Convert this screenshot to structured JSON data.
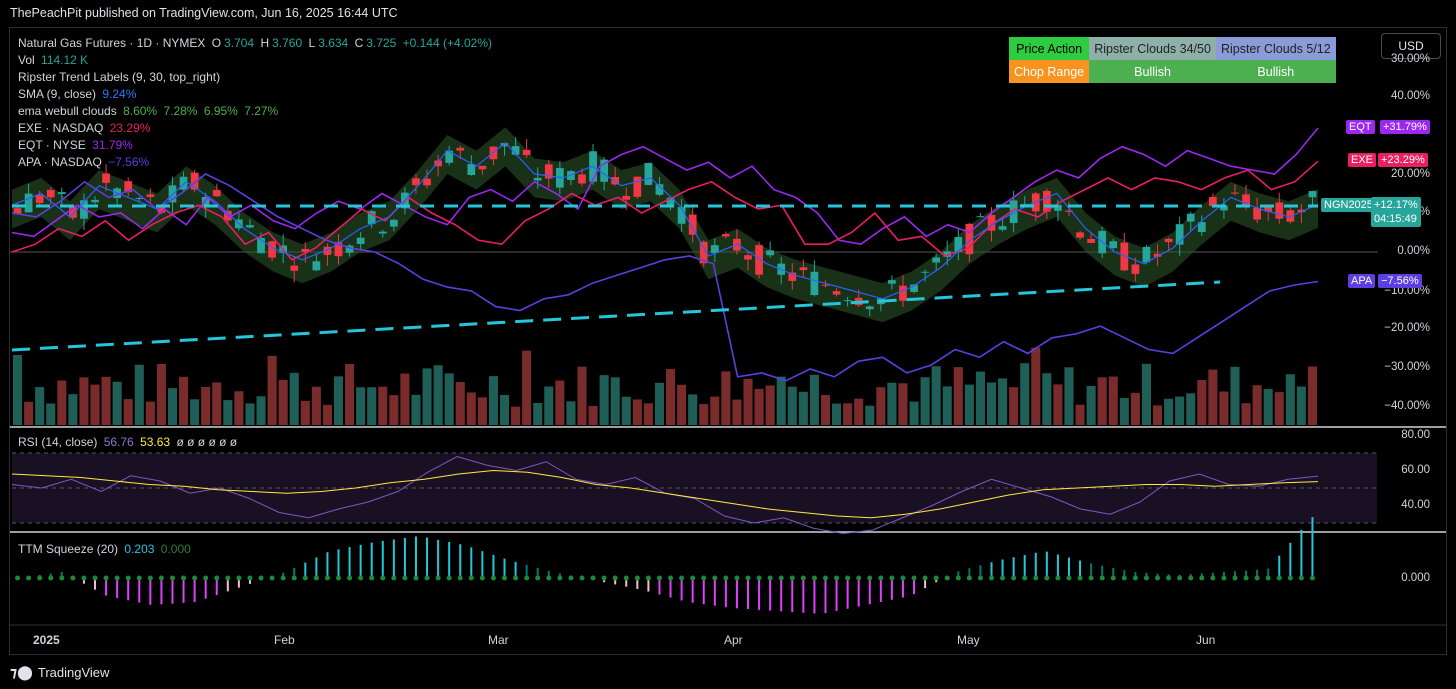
{
  "caption": "ThePeachPit published on TradingView.com, Jun 16, 2025 16:44 UTC",
  "currency_button": "USD",
  "brand": "TradingView",
  "legend": {
    "symbol": "Natural Gas Futures · 1D · NYMEX",
    "ohlc": {
      "o_label": "O",
      "o": "3.704",
      "h_label": "H",
      "h": "3.760",
      "l_label": "L",
      "l": "3.634",
      "c_label": "C",
      "c": "3.725",
      "chg": "+0.144 (+4.02%)"
    },
    "vol_label": "Vol",
    "vol": "114.12 K",
    "ripster_labels": "Ripster Trend Labels (9, 30, top_right)",
    "sma_label": "SMA (9, close)",
    "sma": "9.24%",
    "ema_label": "ema webull clouds",
    "ema_values": [
      "8.60%",
      "7.28%",
      "6.95%",
      "7.27%"
    ],
    "exe_label": "EXE · NASDAQ",
    "exe": "23.29%",
    "eqt_label": "EQT · NYSE",
    "eqt": "31.79%",
    "apa_label": "APA · NASDAQ",
    "apa": "−7.56%",
    "rsi_label": "RSI (14, close)",
    "rsi": "56.76",
    "rsi_ma": "53.63",
    "rsi_extra": "ø ø ø ø ø ø",
    "ttm_label": "TTM Squeeze (20)",
    "ttm_val": "0.203",
    "ttm_zero": "0.000"
  },
  "ripster_table": {
    "row1": [
      "Price Action",
      "Ripster Clouds 34/50",
      "Ripster Clouds 5/12"
    ],
    "row2": [
      "Chop Range",
      "Bullish",
      "Bullish"
    ],
    "colors": {
      "price_action": "#2ecc40",
      "chop": "#f7931e",
      "bull": "#4caf50",
      "r34": "#8fb0a8",
      "r512": "#8a9bd8"
    }
  },
  "axis_labels": {
    "main": [
      "30.00%",
      "40.00%",
      "20.00%",
      "10.00%",
      "0.00%",
      "−10.00%",
      "−20.00%",
      "−30.00%",
      "−40.00%"
    ],
    "rsi": [
      "80.00",
      "60.00",
      "40.00"
    ],
    "ttm": [
      "0.000"
    ],
    "x": [
      "2025",
      "Feb",
      "Mar",
      "Apr",
      "May",
      "Jun"
    ]
  },
  "tags": {
    "eqt": {
      "name": "EQT",
      "value": "+31.79%",
      "color": "#9c27f0"
    },
    "exe": {
      "name": "EXE",
      "value": "+23.29%",
      "color": "#e91e63"
    },
    "ngn": {
      "name": "NGN2025",
      "value": "+12.17%",
      "time": "04:15:49",
      "color": "#26a69a"
    },
    "apa": {
      "name": "APA",
      "value": "−7.56%",
      "color": "#5b3fe0"
    }
  },
  "chart_data": {
    "type": "line",
    "scale": "percent",
    "ylim": [
      -42,
      46
    ],
    "series": [
      {
        "name": "EQT",
        "values": [
          5,
          4,
          8,
          12,
          9,
          10,
          6,
          11,
          7,
          14,
          9,
          12,
          8,
          6,
          10,
          13,
          11,
          15,
          12,
          9,
          7,
          14,
          16,
          13,
          18,
          15,
          11,
          22,
          25,
          27,
          24,
          21,
          23,
          19,
          22,
          16,
          14,
          10,
          3,
          2,
          6,
          9,
          4,
          7,
          5,
          10,
          14,
          18,
          21,
          19,
          24,
          27,
          25,
          22,
          26,
          24,
          22,
          21,
          20,
          25,
          31.79
        ]
      },
      {
        "name": "EXE",
        "values": [
          0,
          2,
          6,
          4,
          8,
          3,
          7,
          10,
          12,
          9,
          2,
          5,
          -2,
          1,
          6,
          11,
          8,
          14,
          10,
          7,
          3,
          2,
          8,
          11,
          15,
          12,
          14,
          10,
          13,
          16,
          18,
          14,
          11,
          12,
          2,
          2,
          5,
          10,
          3,
          4,
          -1,
          1,
          7,
          11,
          9,
          13,
          16,
          19,
          16,
          19,
          18,
          16,
          19,
          21,
          16,
          18,
          23.29
        ]
      },
      {
        "name": "APA",
        "values": [
          10,
          9,
          13,
          18,
          14,
          16,
          11,
          15,
          20,
          17,
          13,
          9,
          6,
          3,
          1,
          0,
          -3,
          -7,
          -9,
          -10,
          -14,
          -15,
          -12,
          -11,
          -8,
          -6,
          -4,
          -2,
          -1,
          -3,
          -32,
          -31,
          -33,
          -30,
          -32,
          -28,
          -27,
          -31,
          -29,
          -25,
          -27,
          -23,
          -26,
          -22,
          -21,
          -19,
          -22,
          -25,
          -26,
          -22,
          -18,
          -14,
          -10,
          -8.5,
          -7.56
        ]
      },
      {
        "name": "NGN2025",
        "values": [
          12,
          15,
          9,
          17,
          14,
          11,
          18,
          13,
          6,
          1,
          -2,
          1,
          6,
          9,
          17,
          26,
          22,
          28,
          20,
          19,
          22,
          17,
          19,
          12,
          -1,
          2,
          -3,
          -6,
          -8,
          -10,
          -12,
          -9,
          -4,
          3,
          8,
          12,
          15,
          6,
          0,
          -3,
          1,
          8,
          14,
          11,
          9,
          12.17
        ]
      }
    ],
    "rsi": {
      "ylim": [
        20,
        80
      ],
      "values": [
        52,
        50,
        55,
        48,
        57,
        54,
        47,
        50,
        44,
        36,
        33,
        38,
        42,
        48,
        59,
        68,
        63,
        60,
        65,
        55,
        52,
        56,
        47,
        44,
        34,
        30,
        33,
        27,
        24,
        26,
        33,
        40,
        48,
        55,
        50,
        45,
        38,
        35,
        42,
        54,
        58,
        52,
        51,
        55,
        56.76
      ],
      "ma": [
        58,
        57,
        56,
        54,
        52,
        51,
        49,
        48,
        47,
        48,
        50,
        53,
        55,
        58,
        60,
        59,
        56,
        52,
        50,
        47,
        44,
        41,
        38,
        36,
        34,
        33,
        35,
        38,
        42,
        46,
        49,
        50,
        51,
        52,
        52,
        51,
        52,
        53,
        53.63
      ]
    },
    "ttm": {
      "values": [
        0,
        0.02,
        -0.06,
        -0.09,
        -0.08,
        -0.03,
        0.02,
        0.09,
        0.12,
        0.14,
        0.11,
        0.06,
        0.02,
        -0.01,
        -0.04,
        -0.08,
        -0.1,
        -0.11,
        -0.12,
        -0.09,
        -0.06,
        0.02,
        0.06,
        0.09,
        0.05,
        0.02,
        0.01,
        0.02,
        0.03,
        0.203
      ]
    },
    "x_ticks": [
      "2025",
      "Feb",
      "Mar",
      "Apr",
      "May",
      "Jun"
    ]
  }
}
